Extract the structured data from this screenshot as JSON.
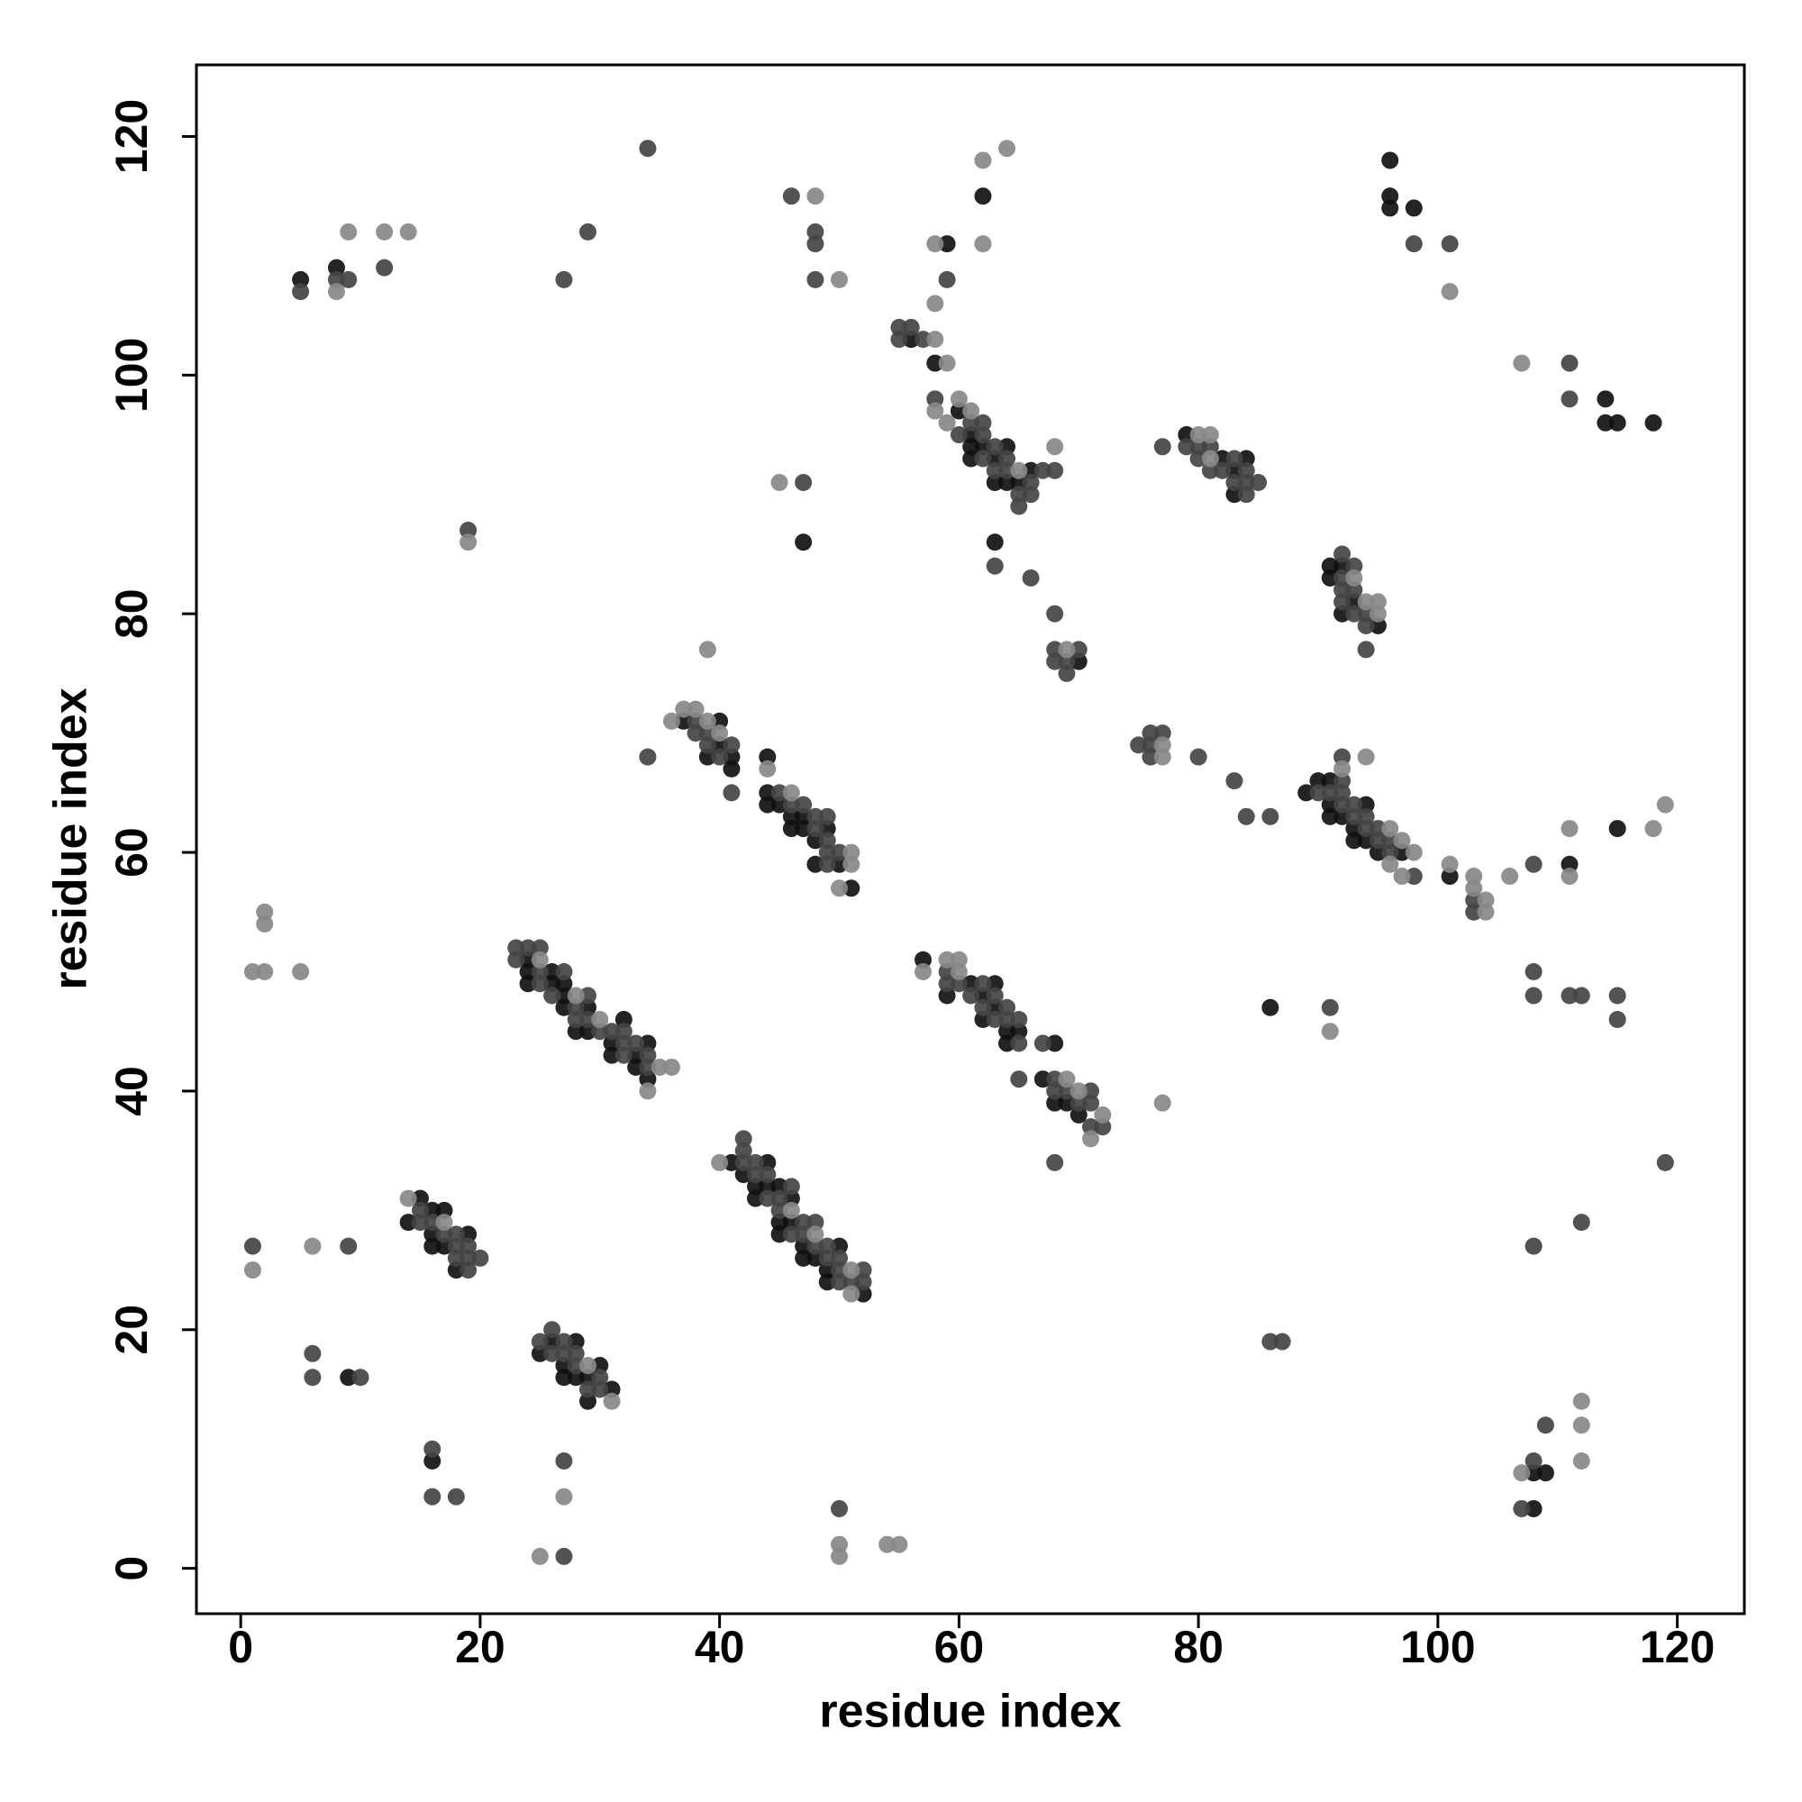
{
  "chart_data": {
    "type": "scatter",
    "x_label": "residue index",
    "y_label": "residue index",
    "xlim": [
      -3.7,
      125.6
    ],
    "ylim": [
      -3.8,
      126
    ],
    "xticks": [
      0,
      20,
      40,
      60,
      80,
      100,
      120
    ],
    "yticks": [
      0,
      20,
      40,
      60,
      80,
      100,
      120
    ],
    "grid": false,
    "series": [
      {
        "color": "#111111",
        "x": [
          5,
          8,
          59,
          62,
          56,
          58,
          60,
          61,
          61,
          62,
          61,
          63,
          63,
          64,
          64,
          65,
          66,
          63,
          70,
          47,
          96,
          96,
          96,
          98,
          114,
          114,
          115,
          118,
          79,
          82,
          83,
          83,
          84,
          91,
          91,
          92,
          93,
          92,
          95,
          37,
          39,
          40,
          40,
          41,
          41,
          44,
          44,
          44,
          45,
          46,
          46,
          47,
          47,
          48,
          48,
          49,
          50,
          51,
          89,
          90,
          91,
          91,
          91,
          92,
          93,
          93,
          94,
          94,
          95,
          97,
          101,
          111,
          115,
          24,
          24,
          26,
          24,
          26,
          27,
          27,
          27,
          28,
          29,
          29,
          31,
          31,
          32,
          33,
          33,
          34,
          34,
          57,
          59,
          61,
          62,
          62,
          63,
          63,
          64,
          64,
          65,
          67,
          68,
          68,
          69,
          70,
          86,
          41,
          42,
          43,
          43,
          44,
          44,
          45,
          45,
          45,
          46,
          46,
          47,
          47,
          48,
          49,
          49,
          50,
          52,
          15,
          14,
          16,
          16,
          16,
          17,
          17,
          18,
          19,
          9,
          25,
          26,
          27,
          27,
          28,
          28,
          29,
          29,
          30,
          31,
          16,
          108,
          109,
          108
        ],
        "values": [
          108,
          109,
          111,
          115,
          103,
          101,
          97,
          95,
          94,
          94,
          93,
          93,
          91,
          94,
          91,
          91,
          92,
          86,
          76,
          86,
          118,
          115,
          114,
          114,
          98,
          96,
          96,
          96,
          95,
          93,
          92,
          90,
          93,
          84,
          83,
          84,
          81,
          80,
          79,
          71,
          68,
          71,
          69,
          68,
          67,
          68,
          65,
          64,
          64,
          63,
          62,
          63,
          62,
          61,
          59,
          62,
          59,
          57,
          65,
          66,
          66,
          64,
          63,
          63,
          62,
          61,
          64,
          61,
          60,
          60,
          58,
          59,
          62,
          51,
          50,
          50,
          49,
          49,
          49,
          48,
          47,
          45,
          47,
          45,
          44,
          43,
          46,
          43,
          42,
          44,
          41,
          51,
          48,
          49,
          48,
          46,
          49,
          47,
          45,
          44,
          45,
          41,
          44,
          39,
          39,
          38,
          47,
          34,
          33,
          32,
          31,
          34,
          32,
          32,
          29,
          28,
          31,
          29,
          27,
          26,
          26,
          25,
          24,
          27,
          23,
          31,
          29,
          30,
          28,
          27,
          30,
          27,
          25,
          28,
          16,
          18,
          19,
          17,
          16,
          19,
          16,
          16,
          14,
          17,
          15,
          9,
          8,
          8,
          5
        ]
      },
      {
        "color": "#444444",
        "x": [
          5,
          8,
          9,
          12,
          34,
          29,
          27,
          46,
          48,
          48,
          48,
          59,
          55,
          56,
          55,
          57,
          58,
          60,
          61,
          62,
          62,
          62,
          63,
          63,
          64,
          64,
          65,
          65,
          66,
          66,
          67,
          68,
          63,
          66,
          68,
          68,
          68,
          69,
          70,
          69,
          47,
          19,
          98,
          101,
          111,
          111,
          77,
          79,
          80,
          81,
          80,
          81,
          82,
          83,
          83,
          84,
          84,
          84,
          85,
          92,
          92,
          92,
          93,
          93,
          93,
          92,
          94,
          94,
          94,
          38,
          38,
          39,
          39,
          40,
          41,
          41,
          34,
          45,
          46,
          47,
          48,
          48,
          49,
          49,
          49,
          49,
          50,
          75,
          76,
          76,
          76,
          77,
          80,
          83,
          84,
          86,
          90,
          91,
          92,
          92,
          92,
          92,
          93,
          93,
          94,
          94,
          95,
          95,
          96,
          96,
          98,
          103,
          103,
          108,
          23,
          24,
          25,
          23,
          25,
          25,
          27,
          26,
          28,
          29,
          28,
          29,
          30,
          31,
          32,
          32,
          32,
          33,
          34,
          34,
          59,
          59,
          60,
          61,
          62,
          62,
          63,
          63,
          64,
          64,
          65,
          65,
          65,
          67,
          68,
          68,
          69,
          70,
          71,
          71,
          71,
          72,
          68,
          91,
          108,
          108,
          111,
          112,
          115,
          115,
          119,
          112,
          108,
          42,
          42,
          42,
          43,
          43,
          44,
          44,
          45,
          45,
          46,
          46,
          47,
          47,
          48,
          48,
          49,
          49,
          50,
          50,
          50,
          51,
          52,
          52,
          15,
          15,
          16,
          17,
          18,
          18,
          18,
          19,
          19,
          19,
          20,
          1,
          9,
          6,
          6,
          10,
          25,
          26,
          27,
          26,
          27,
          28,
          28,
          29,
          30,
          30,
          16,
          16,
          18,
          27,
          27,
          50,
          86,
          87,
          108,
          109,
          107
        ],
        "values": [
          107,
          108,
          108,
          109,
          119,
          112,
          108,
          115,
          112,
          111,
          108,
          108,
          104,
          104,
          103,
          103,
          98,
          95,
          96,
          96,
          95,
          93,
          94,
          92,
          93,
          92,
          90,
          89,
          91,
          90,
          92,
          92,
          84,
          83,
          80,
          77,
          76,
          75,
          77,
          76,
          91,
          87,
          111,
          111,
          101,
          98,
          94,
          94,
          94,
          94,
          93,
          92,
          92,
          93,
          91,
          92,
          91,
          90,
          91,
          85,
          83,
          82,
          84,
          82,
          80,
          81,
          80,
          79,
          77,
          71,
          70,
          70,
          69,
          68,
          69,
          65,
          68,
          65,
          64,
          64,
          63,
          62,
          63,
          61,
          60,
          59,
          60,
          69,
          70,
          69,
          68,
          70,
          68,
          66,
          63,
          63,
          65,
          65,
          68,
          66,
          65,
          64,
          64,
          63,
          63,
          62,
          62,
          61,
          61,
          60,
          58,
          56,
          55,
          59,
          52,
          52,
          52,
          51,
          50,
          49,
          50,
          48,
          47,
          48,
          46,
          46,
          45,
          45,
          45,
          44,
          43,
          44,
          43,
          42,
          50,
          49,
          49,
          48,
          49,
          47,
          48,
          46,
          47,
          46,
          46,
          44,
          41,
          44,
          41,
          40,
          40,
          39,
          40,
          39,
          37,
          37,
          34,
          47,
          50,
          48,
          48,
          48,
          48,
          46,
          34,
          29,
          27,
          36,
          35,
          34,
          34,
          33,
          33,
          31,
          31,
          30,
          32,
          28,
          29,
          28,
          29,
          27,
          27,
          26,
          26,
          25,
          24,
          24,
          25,
          24,
          29,
          30,
          29,
          28,
          28,
          27,
          26,
          27,
          26,
          25,
          26,
          27,
          27,
          18,
          16,
          16,
          19,
          20,
          19,
          18,
          18,
          18,
          17,
          15,
          16,
          15,
          10,
          6,
          6,
          9,
          1,
          5,
          19,
          19,
          9,
          12,
          5
        ]
      },
      {
        "color": "#888888",
        "x": [
          8,
          9,
          12,
          14,
          48,
          50,
          58,
          58,
          62,
          64,
          62,
          58,
          59,
          58,
          59,
          60,
          61,
          65,
          68,
          69,
          45,
          19,
          101,
          107,
          80,
          81,
          81,
          93,
          94,
          95,
          95,
          39,
          36,
          37,
          38,
          39,
          40,
          44,
          46,
          50,
          51,
          51,
          77,
          77,
          92,
          94,
          96,
          96,
          97,
          97,
          98,
          101,
          103,
          103,
          104,
          104,
          106,
          111,
          111,
          118,
          119,
          2,
          2,
          1,
          2,
          5,
          25,
          28,
          30,
          34,
          35,
          36,
          57,
          59,
          60,
          60,
          69,
          70,
          71,
          72,
          77,
          91,
          40,
          46,
          48,
          51,
          51,
          14,
          17,
          1,
          6,
          29,
          31,
          27,
          25,
          50,
          50,
          54,
          55,
          107,
          112,
          112,
          112
        ],
        "values": [
          107,
          112,
          112,
          112,
          115,
          108,
          111,
          106,
          118,
          119,
          111,
          103,
          101,
          97,
          96,
          98,
          97,
          92,
          94,
          77,
          91,
          86,
          107,
          101,
          95,
          95,
          93,
          83,
          81,
          81,
          80,
          77,
          71,
          72,
          72,
          71,
          70,
          67,
          65,
          57,
          60,
          59,
          69,
          68,
          67,
          68,
          62,
          59,
          61,
          58,
          60,
          59,
          58,
          57,
          56,
          55,
          58,
          62,
          58,
          62,
          64,
          55,
          54,
          50,
          50,
          50,
          51,
          48,
          46,
          40,
          42,
          42,
          50,
          51,
          51,
          50,
          41,
          40,
          36,
          38,
          39,
          45,
          34,
          30,
          28,
          25,
          23,
          31,
          29,
          25,
          27,
          17,
          14,
          6,
          1,
          2,
          1,
          2,
          2,
          8,
          14,
          12,
          9
        ]
      }
    ]
  }
}
